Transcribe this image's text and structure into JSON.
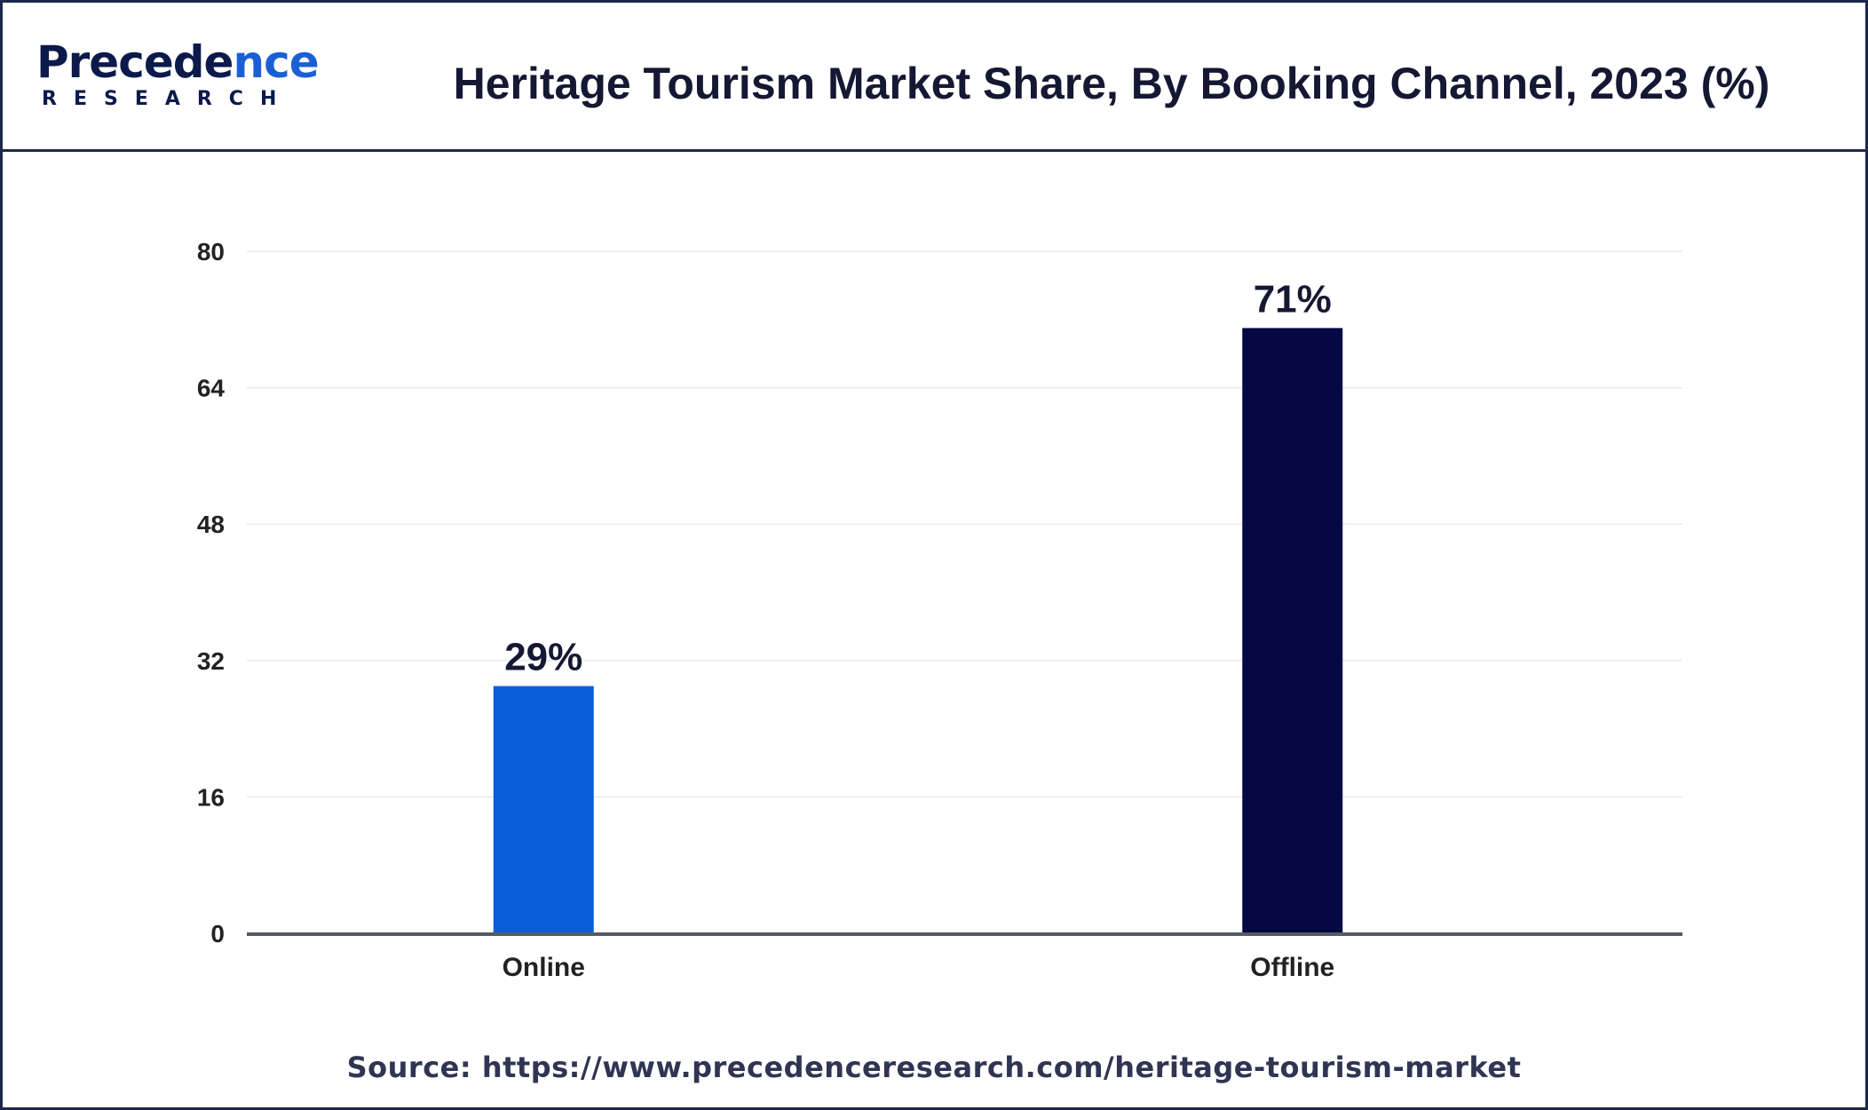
{
  "logo": {
    "word_main": "Precede",
    "word_tail": "nce",
    "sub": "RESEARCH"
  },
  "header": {
    "title": "Heritage Tourism Market Share, By Booking Channel, 2023 (%)"
  },
  "chart_data": {
    "type": "bar",
    "title": "Heritage Tourism Market Share, By Booking Channel, 2023 (%)",
    "categories": [
      "Online",
      "Offline"
    ],
    "values": [
      29,
      71
    ],
    "data_labels": [
      "29%",
      "71%"
    ],
    "colors": [
      "#0a5fd9",
      "#050843"
    ],
    "ylim": [
      0,
      80
    ],
    "yticks": [
      0,
      16,
      32,
      48,
      64,
      80
    ],
    "xlabel": "",
    "ylabel": "",
    "grid": true,
    "legend": "none"
  },
  "footer": {
    "source": "Source: https://www.precedenceresearch.com/heritage-tourism-market"
  }
}
